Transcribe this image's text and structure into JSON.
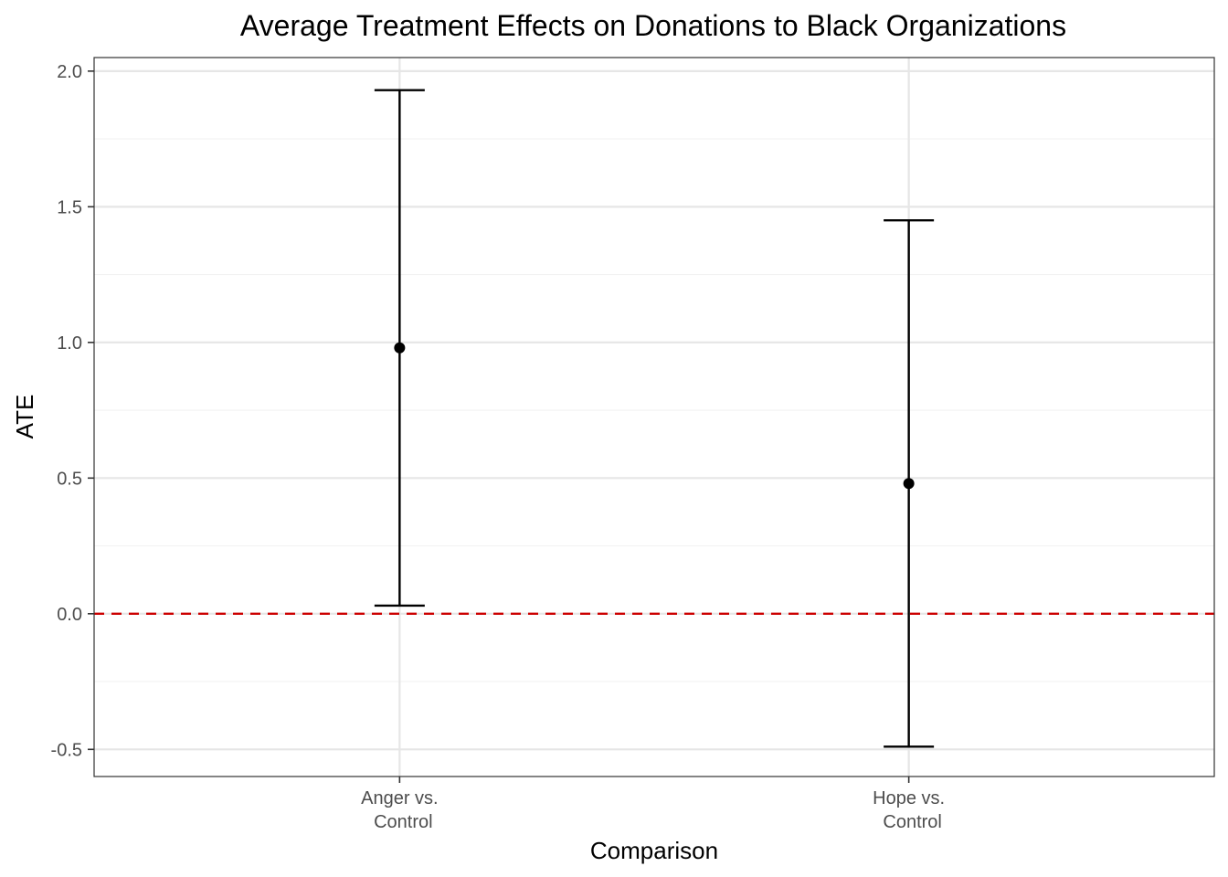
{
  "chart_data": {
    "type": "scatter",
    "subtype": "point-with-error-bars",
    "title": "Average Treatment Effects on Donations to Black Organizations",
    "xlabel": "Comparison",
    "ylabel": "ATE",
    "categories": [
      [
        "Anger vs.",
        "Control"
      ],
      [
        "Hope vs.",
        "Control"
      ]
    ],
    "points": [
      {
        "category": "Anger vs. Control",
        "estimate": 0.98,
        "lower": 0.03,
        "upper": 1.93
      },
      {
        "category": "Hope vs. Control",
        "estimate": 0.48,
        "lower": -0.49,
        "upper": 1.45
      }
    ],
    "ylim": [
      -0.6,
      2.05
    ],
    "y_ticks": [
      -0.5,
      0.0,
      0.5,
      1.0,
      1.5,
      2.0
    ],
    "y_tick_labels": [
      "-0.5",
      "0.0",
      "0.5",
      "1.0",
      "1.5",
      "2.0"
    ],
    "reference_line": {
      "y": 0,
      "style": "dashed",
      "color": "#cc0000"
    },
    "grid": true,
    "legend": "none",
    "colors": {
      "point": "#000000",
      "error_bar": "#000000",
      "grid_major": "#e6e6e6",
      "grid_minor": "#f2f2f2",
      "panel_border": "#333333"
    }
  }
}
